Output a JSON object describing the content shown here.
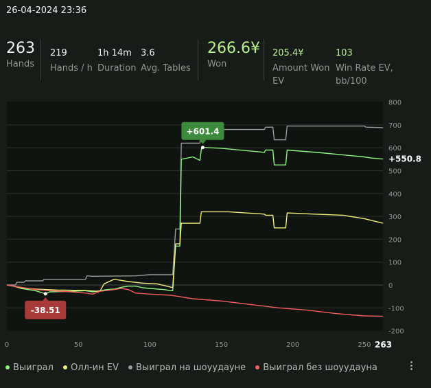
{
  "header": {
    "datetime": "26-04-2024 23:36"
  },
  "stats": {
    "hands": {
      "value": "263",
      "label": "Hands"
    },
    "hands_per_hour": {
      "value": "219",
      "label": "Hands / h"
    },
    "duration": {
      "value": "1h 14m",
      "label": "Duration"
    },
    "avg_tables": {
      "value": "3.6",
      "label": "Avg. Tables"
    },
    "won": {
      "value": "266.6¥",
      "label": "Won"
    },
    "amount_won_ev": {
      "value": "205.4¥",
      "label_line1": "Amount Won",
      "label_line2": "EV"
    },
    "win_rate_ev": {
      "value": "103",
      "label_line1": "Win Rate EV,",
      "label_line2": "bb/100"
    }
  },
  "legend": {
    "won": "Выиграл",
    "allin_ev": "Олл-ин EV",
    "showdown": "Выиграл на шоуудауне",
    "no_showdown": "Выиграл без шоуудауна"
  },
  "colors": {
    "won": "#8ef57e",
    "allin_ev": "#f1ef7a",
    "showdown": "#9a9a9a",
    "no_showdown": "#f25f5f",
    "accent": "#b9f18d",
    "max_badge": "#3c8a3c",
    "min_badge": "#a83a3a"
  },
  "chart_data": {
    "type": "line",
    "x_label_last": "263",
    "xlim": [
      0,
      263
    ],
    "ylim": [
      -200,
      800
    ],
    "x_ticks": [
      0,
      50,
      100,
      150,
      200,
      250
    ],
    "y_ticks": [
      -200,
      -100,
      0,
      100,
      200,
      300,
      400,
      500,
      600,
      700,
      800
    ],
    "grid": true,
    "end_label": "+550.8",
    "max_annotation": {
      "text": "+601.4",
      "x": 137,
      "y": 601.4
    },
    "min_annotation": {
      "text": "-38.51",
      "x": 27,
      "y": -38.51
    },
    "series": [
      {
        "name": "Выиграл на шоуудауне",
        "key": "showdown",
        "points": [
          [
            0,
            0
          ],
          [
            6,
            0
          ],
          [
            7,
            12
          ],
          [
            12,
            12
          ],
          [
            13,
            18
          ],
          [
            25,
            18
          ],
          [
            26,
            25
          ],
          [
            55,
            25
          ],
          [
            56,
            40
          ],
          [
            60,
            38
          ],
          [
            90,
            40
          ],
          [
            100,
            45
          ],
          [
            115,
            45
          ],
          [
            116,
            45
          ],
          [
            118,
            245
          ],
          [
            121,
            245
          ],
          [
            122,
            620
          ],
          [
            135,
            620
          ],
          [
            136,
            680
          ],
          [
            180,
            680
          ],
          [
            181,
            690
          ],
          [
            186,
            690
          ],
          [
            187,
            635
          ],
          [
            195,
            635
          ],
          [
            196,
            695
          ],
          [
            250,
            695
          ],
          [
            251,
            690
          ],
          [
            263,
            688
          ]
        ]
      },
      {
        "name": "Выиграл",
        "key": "won",
        "points": [
          [
            0,
            0
          ],
          [
            5,
            -5
          ],
          [
            10,
            -15
          ],
          [
            15,
            -20
          ],
          [
            20,
            -25
          ],
          [
            27,
            -38.5
          ],
          [
            30,
            -30
          ],
          [
            45,
            -28
          ],
          [
            55,
            -25
          ],
          [
            60,
            -30
          ],
          [
            65,
            -25
          ],
          [
            70,
            -20
          ],
          [
            75,
            -18
          ],
          [
            80,
            -10
          ],
          [
            85,
            -5
          ],
          [
            90,
            -5
          ],
          [
            95,
            -12
          ],
          [
            100,
            -15
          ],
          [
            110,
            -20
          ],
          [
            115,
            -25
          ],
          [
            116,
            -25
          ],
          [
            118,
            170
          ],
          [
            121,
            170
          ],
          [
            122,
            550
          ],
          [
            130,
            560
          ],
          [
            135,
            545
          ],
          [
            136,
            595
          ],
          [
            137,
            601.4
          ],
          [
            150,
            598
          ],
          [
            180,
            580
          ],
          [
            181,
            590
          ],
          [
            186,
            590
          ],
          [
            187,
            525
          ],
          [
            195,
            525
          ],
          [
            196,
            590
          ],
          [
            220,
            578
          ],
          [
            250,
            560
          ],
          [
            255,
            555
          ],
          [
            263,
            550.8
          ]
        ]
      },
      {
        "name": "Олл-ин EV",
        "key": "allin_ev",
        "points": [
          [
            0,
            0
          ],
          [
            10,
            -12
          ],
          [
            20,
            -18
          ],
          [
            35,
            -22
          ],
          [
            55,
            -24
          ],
          [
            65,
            -28
          ],
          [
            68,
            5
          ],
          [
            75,
            25
          ],
          [
            80,
            20
          ],
          [
            85,
            15
          ],
          [
            95,
            8
          ],
          [
            105,
            5
          ],
          [
            115,
            -10
          ],
          [
            116,
            -10
          ],
          [
            118,
            180
          ],
          [
            121,
            180
          ],
          [
            122,
            270
          ],
          [
            135,
            270
          ],
          [
            136,
            320
          ],
          [
            155,
            320
          ],
          [
            180,
            310
          ],
          [
            181,
            305
          ],
          [
            186,
            305
          ],
          [
            187,
            250
          ],
          [
            195,
            250
          ],
          [
            196,
            315
          ],
          [
            215,
            310
          ],
          [
            235,
            305
          ],
          [
            250,
            290
          ],
          [
            263,
            270
          ]
        ]
      },
      {
        "name": "Выиграл без шоуудауна",
        "key": "no_showdown",
        "points": [
          [
            0,
            0
          ],
          [
            10,
            -10
          ],
          [
            20,
            -20
          ],
          [
            30,
            -25
          ],
          [
            45,
            -30
          ],
          [
            55,
            -35
          ],
          [
            60,
            -40
          ],
          [
            65,
            -28
          ],
          [
            75,
            -20
          ],
          [
            80,
            -15
          ],
          [
            85,
            -20
          ],
          [
            90,
            -35
          ],
          [
            100,
            -40
          ],
          [
            115,
            -45
          ],
          [
            130,
            -60
          ],
          [
            150,
            -70
          ],
          [
            170,
            -85
          ],
          [
            190,
            -100
          ],
          [
            210,
            -110
          ],
          [
            230,
            -125
          ],
          [
            250,
            -135
          ],
          [
            263,
            -137
          ]
        ]
      }
    ]
  }
}
